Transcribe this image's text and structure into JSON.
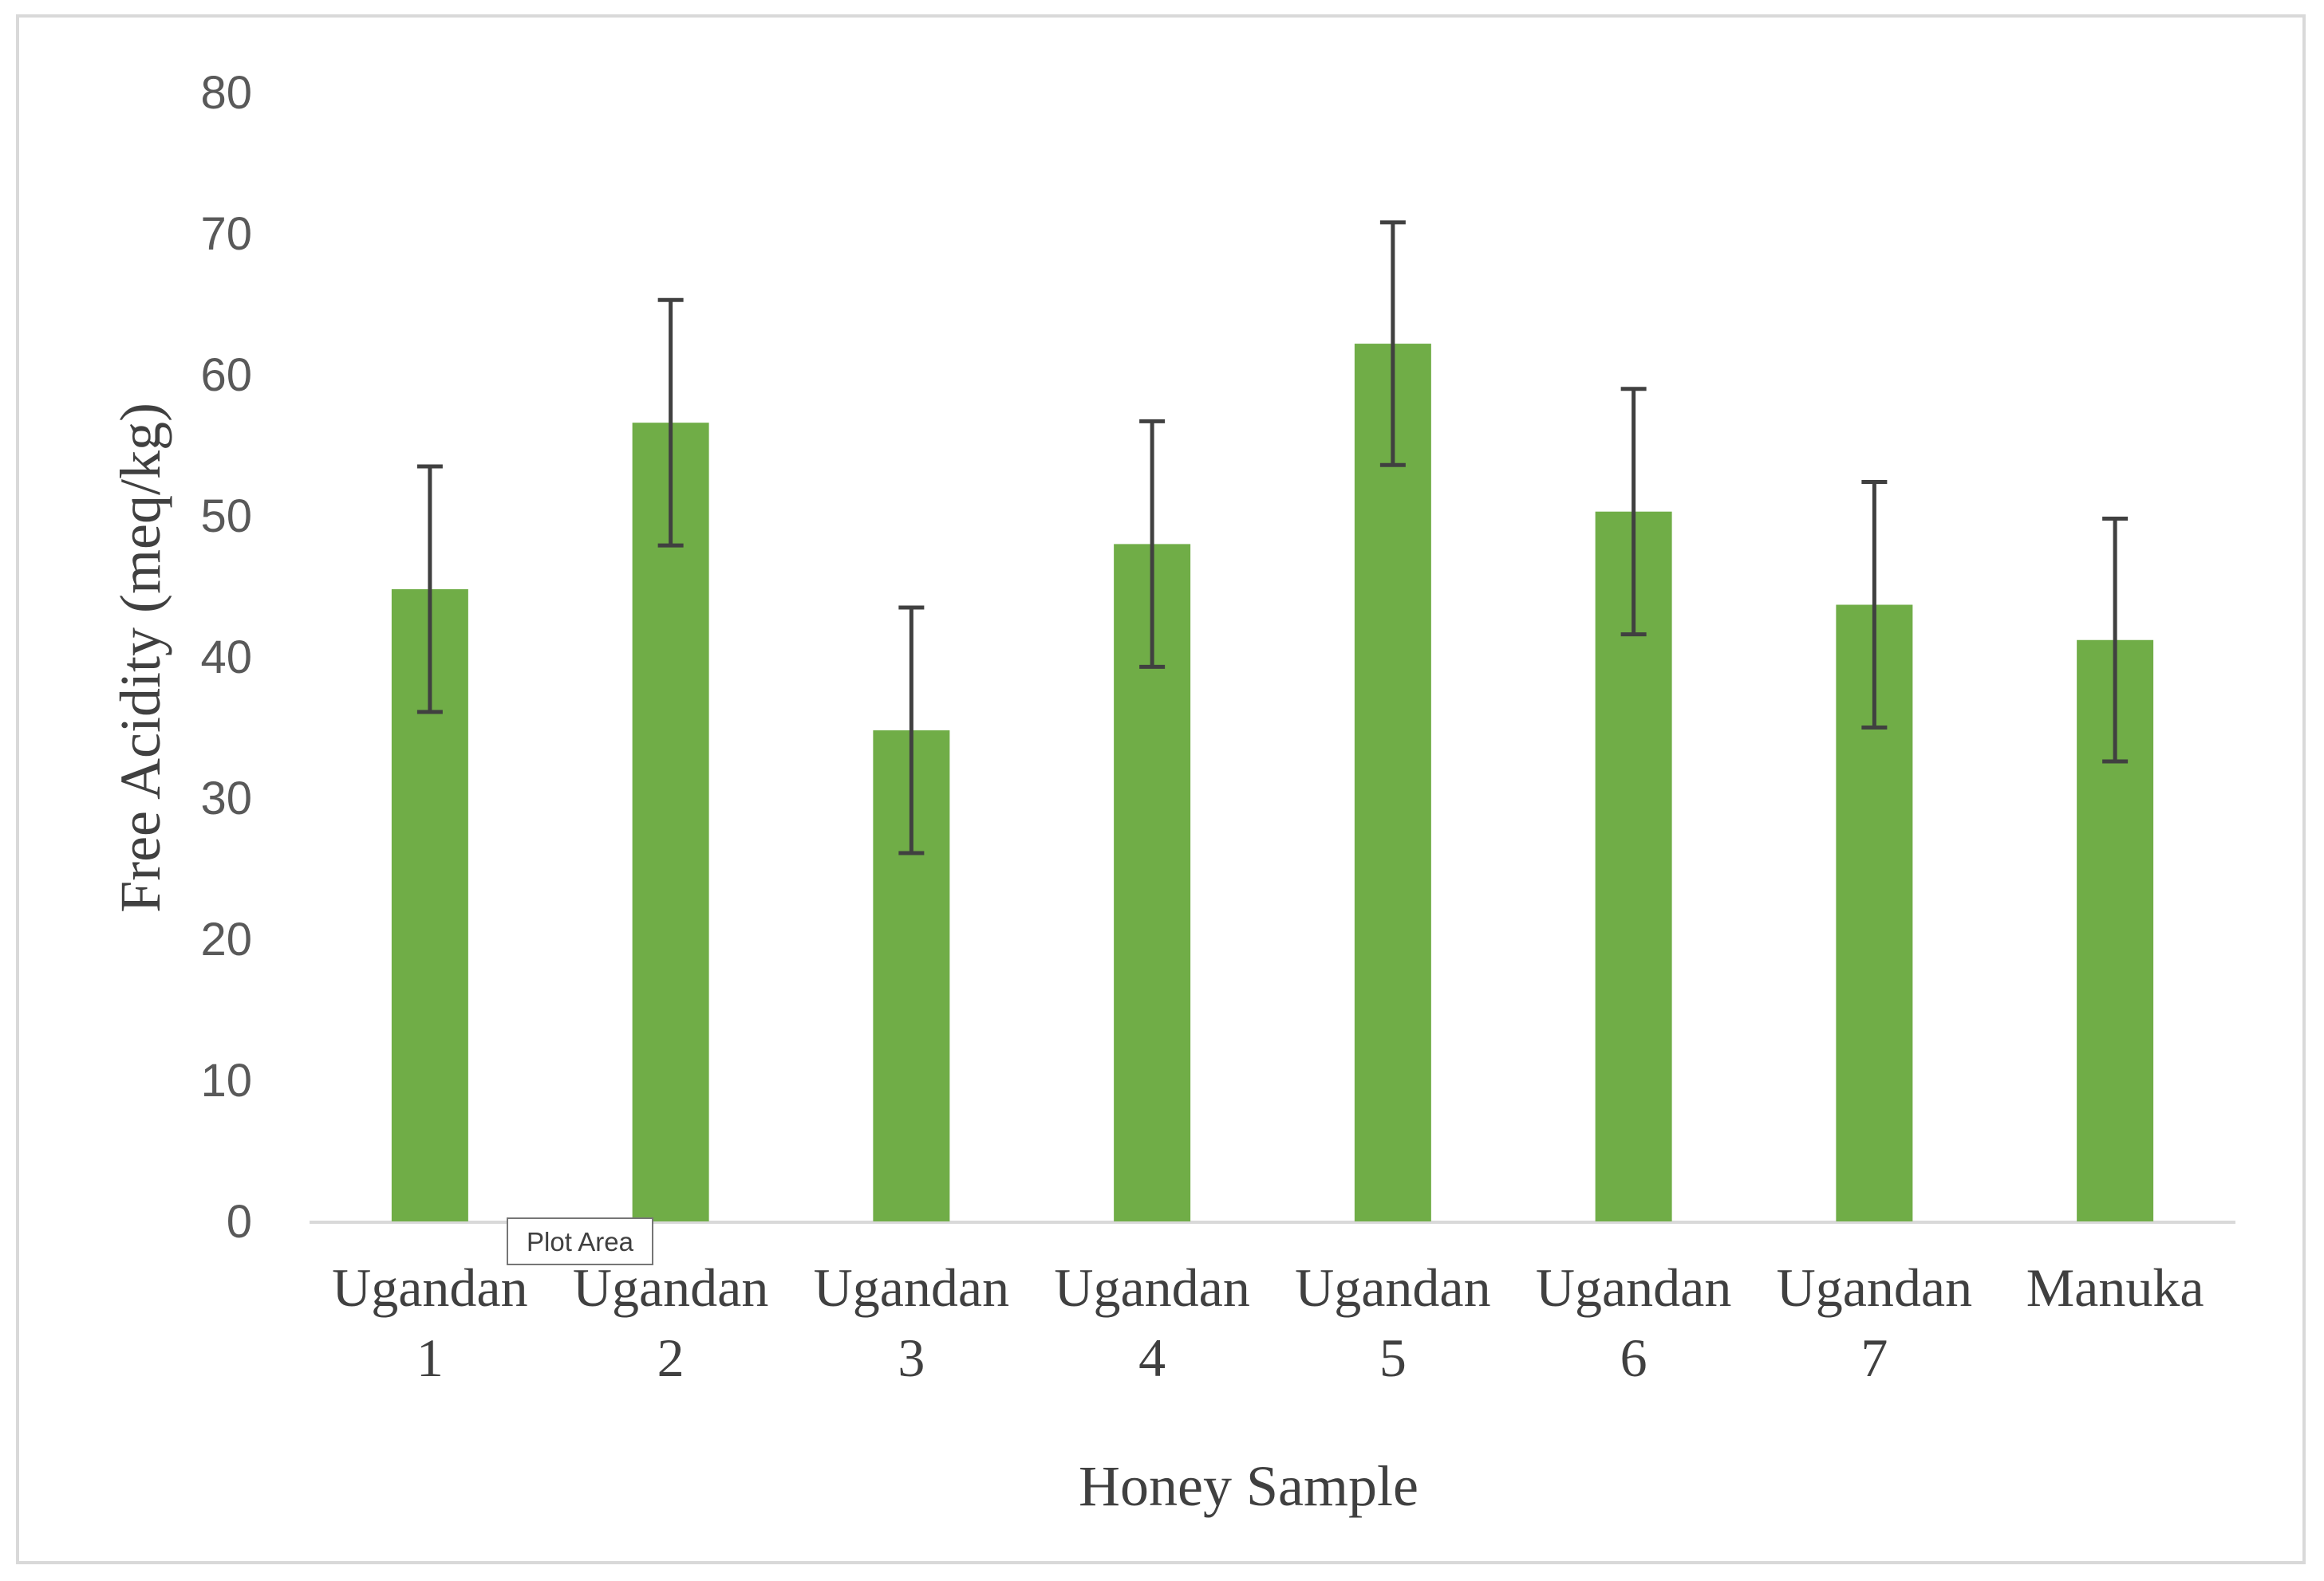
{
  "chart_data": {
    "type": "bar",
    "categories": [
      [
        "Ugandan",
        "1"
      ],
      [
        "Ugandan",
        "2"
      ],
      [
        "Ugandan",
        "3"
      ],
      [
        "Ugandan",
        "4"
      ],
      [
        "Ugandan",
        "5"
      ],
      [
        "Ugandan",
        "6"
      ],
      [
        "Ugandan",
        "7"
      ],
      [
        "Manuka"
      ]
    ],
    "values": [
      44.8,
      56.6,
      34.8,
      48.0,
      62.2,
      50.3,
      43.7,
      41.2
    ],
    "error": [
      8.7,
      8.7,
      8.7,
      8.7,
      8.6,
      8.7,
      8.7,
      8.6
    ],
    "xlabel": "Honey Sample",
    "ylabel": "Free Acidity (meq/kg)",
    "ylim": [
      0,
      80
    ],
    "yticks": [
      0,
      10,
      20,
      30,
      40,
      50,
      60,
      70,
      80
    ],
    "grid": false,
    "legend": "none",
    "bar_color": "#70ad47",
    "error_bar_color": "#404040",
    "axis_color": "#d9d9d9"
  },
  "tooltip": {
    "label": "Plot Area"
  }
}
